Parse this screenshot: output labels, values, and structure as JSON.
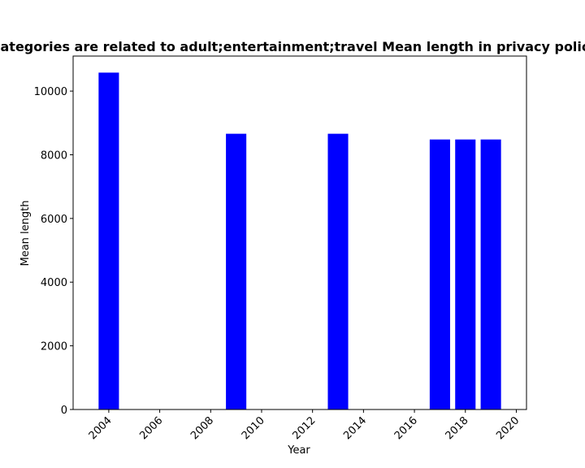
{
  "chart_data": {
    "type": "bar",
    "title": "Categories are related to adult;entertainment;travel Mean length in privacy policies",
    "xlabel": "Year",
    "ylabel": "Mean length",
    "x": [
      2004,
      2009,
      2013,
      2017,
      2018,
      2019
    ],
    "values": [
      10580,
      8660,
      8660,
      8480,
      8480,
      8480
    ],
    "xlim": [
      2002.6,
      2020.4
    ],
    "ylim": [
      0,
      11100
    ],
    "xticks": [
      2004,
      2006,
      2008,
      2010,
      2012,
      2014,
      2016,
      2018,
      2020
    ],
    "yticks": [
      0,
      2000,
      4000,
      6000,
      8000,
      10000
    ],
    "bar_color": "#0000ff",
    "grid": false,
    "legend": "none"
  }
}
